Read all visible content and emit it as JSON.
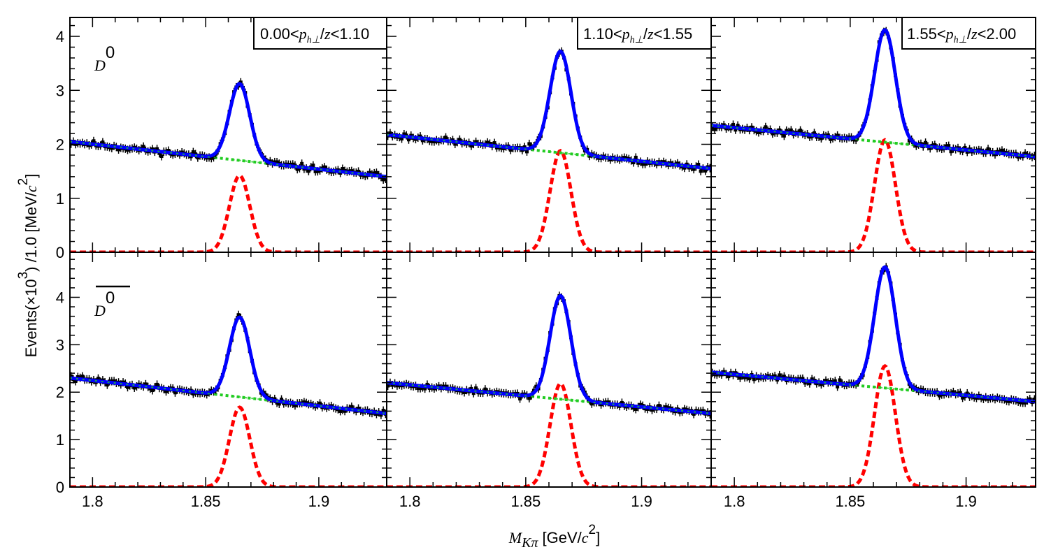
{
  "figure": {
    "y_axis_label": {
      "prefix": "Events(×10",
      "exponent": "3",
      "middle": ") /1.0 [MeV/",
      "c": "c",
      "exp2": "2",
      "suffix": "]"
    },
    "x_axis_label": {
      "M": "M",
      "sub": "Kπ",
      "unit_prefix": " [GeV/",
      "c": "c",
      "exp": "2",
      "suffix": "]"
    },
    "row_labels": [
      {
        "base": "D",
        "sup": "0",
        "overline": false
      },
      {
        "base": "D",
        "sup": "0",
        "overline": true
      }
    ],
    "bin_labels": [
      {
        "low": "0.00<",
        "p": "p",
        "sub": "h⊥",
        "mid": "/",
        "z": "z",
        "high": "<1.10"
      },
      {
        "low": "1.10<",
        "p": "p",
        "sub": "h⊥",
        "mid": "/",
        "z": "z",
        "high": "<1.55"
      },
      {
        "low": "1.55<",
        "p": "p",
        "sub": "h⊥",
        "mid": "/",
        "z": "z",
        "high": "<2.00"
      }
    ],
    "x_ticks": [
      "1.8",
      "1.85",
      "1.9"
    ],
    "y_ticks_top": [
      "0",
      "1",
      "2",
      "3",
      "4"
    ],
    "y_ticks_bottom": [
      "0",
      "1",
      "2",
      "3",
      "4"
    ]
  },
  "colors": {
    "data_points": "#000000",
    "total_fit": "#0000ff",
    "background": "#22cc22",
    "signal": "#ff0000",
    "frame": "#000000"
  },
  "chart_data": [
    {
      "panel": "D0, 0.00<p_h⊥/z<1.10",
      "type": "line",
      "x_range": [
        1.79,
        1.93
      ],
      "y_range": [
        0,
        4.35
      ],
      "signal_peak": 1.42,
      "mean": 1.865,
      "sigma": 0.0045,
      "background_start": 2.05,
      "background_end": 1.4,
      "seed": 11
    },
    {
      "panel": "D0, 1.10<p_h⊥/z<1.55",
      "type": "line",
      "x_range": [
        1.79,
        1.93
      ],
      "y_range": [
        0,
        4.35
      ],
      "signal_peak": 1.88,
      "mean": 1.865,
      "sigma": 0.0045,
      "background_start": 2.18,
      "background_end": 1.55,
      "seed": 23
    },
    {
      "panel": "D0, 1.55<p_h⊥/z<2.00",
      "type": "line",
      "x_range": [
        1.79,
        1.93
      ],
      "y_range": [
        0,
        4.35
      ],
      "signal_peak": 2.08,
      "mean": 1.865,
      "sigma": 0.0045,
      "background_start": 2.35,
      "background_end": 1.77,
      "seed": 37
    },
    {
      "panel": "D0bar, 0.00<p_h⊥/z<1.10",
      "type": "line",
      "x_range": [
        1.79,
        1.93
      ],
      "y_range": [
        0,
        4.95
      ],
      "signal_peak": 1.68,
      "mean": 1.865,
      "sigma": 0.0045,
      "background_start": 2.3,
      "background_end": 1.55,
      "seed": 41
    },
    {
      "panel": "D0bar, 1.10<p_h⊥/z<1.55",
      "type": "line",
      "x_range": [
        1.79,
        1.93
      ],
      "y_range": [
        0,
        4.95
      ],
      "signal_peak": 2.18,
      "mean": 1.865,
      "sigma": 0.0045,
      "background_start": 2.2,
      "background_end": 1.55,
      "seed": 53
    },
    {
      "panel": "D0bar, 1.55<p_h⊥/z<2.00",
      "type": "line",
      "x_range": [
        1.79,
        1.93
      ],
      "y_range": [
        0,
        4.95
      ],
      "signal_peak": 2.55,
      "mean": 1.865,
      "sigma": 0.0045,
      "background_start": 2.42,
      "background_end": 1.8,
      "seed": 67
    }
  ]
}
